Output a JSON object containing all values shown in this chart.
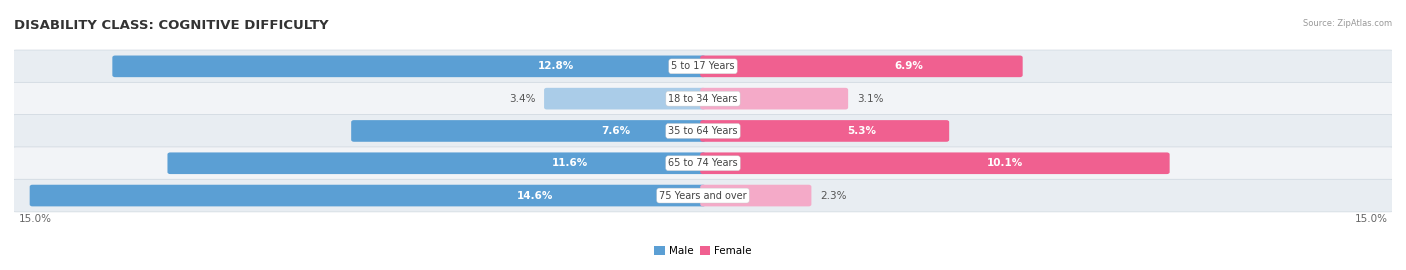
{
  "title": "DISABILITY CLASS: COGNITIVE DIFFICULTY",
  "source": "Source: ZipAtlas.com",
  "categories": [
    "5 to 17 Years",
    "18 to 34 Years",
    "35 to 64 Years",
    "65 to 74 Years",
    "75 Years and over"
  ],
  "male_values": [
    12.8,
    3.4,
    7.6,
    11.6,
    14.6
  ],
  "female_values": [
    6.9,
    3.1,
    5.3,
    10.1,
    2.3
  ],
  "male_color_strong": "#5b9fd4",
  "male_color_light": "#aacce8",
  "female_color_strong": "#f06090",
  "female_color_light": "#f4aac8",
  "row_bg_alt": "#e8edf2",
  "row_bg_norm": "#f2f4f7",
  "row_border": "#d0d8e0",
  "x_max": 15.0,
  "title_fontsize": 9.5,
  "value_fontsize": 7.5,
  "cat_fontsize": 7.0,
  "strong_threshold": 5.0
}
